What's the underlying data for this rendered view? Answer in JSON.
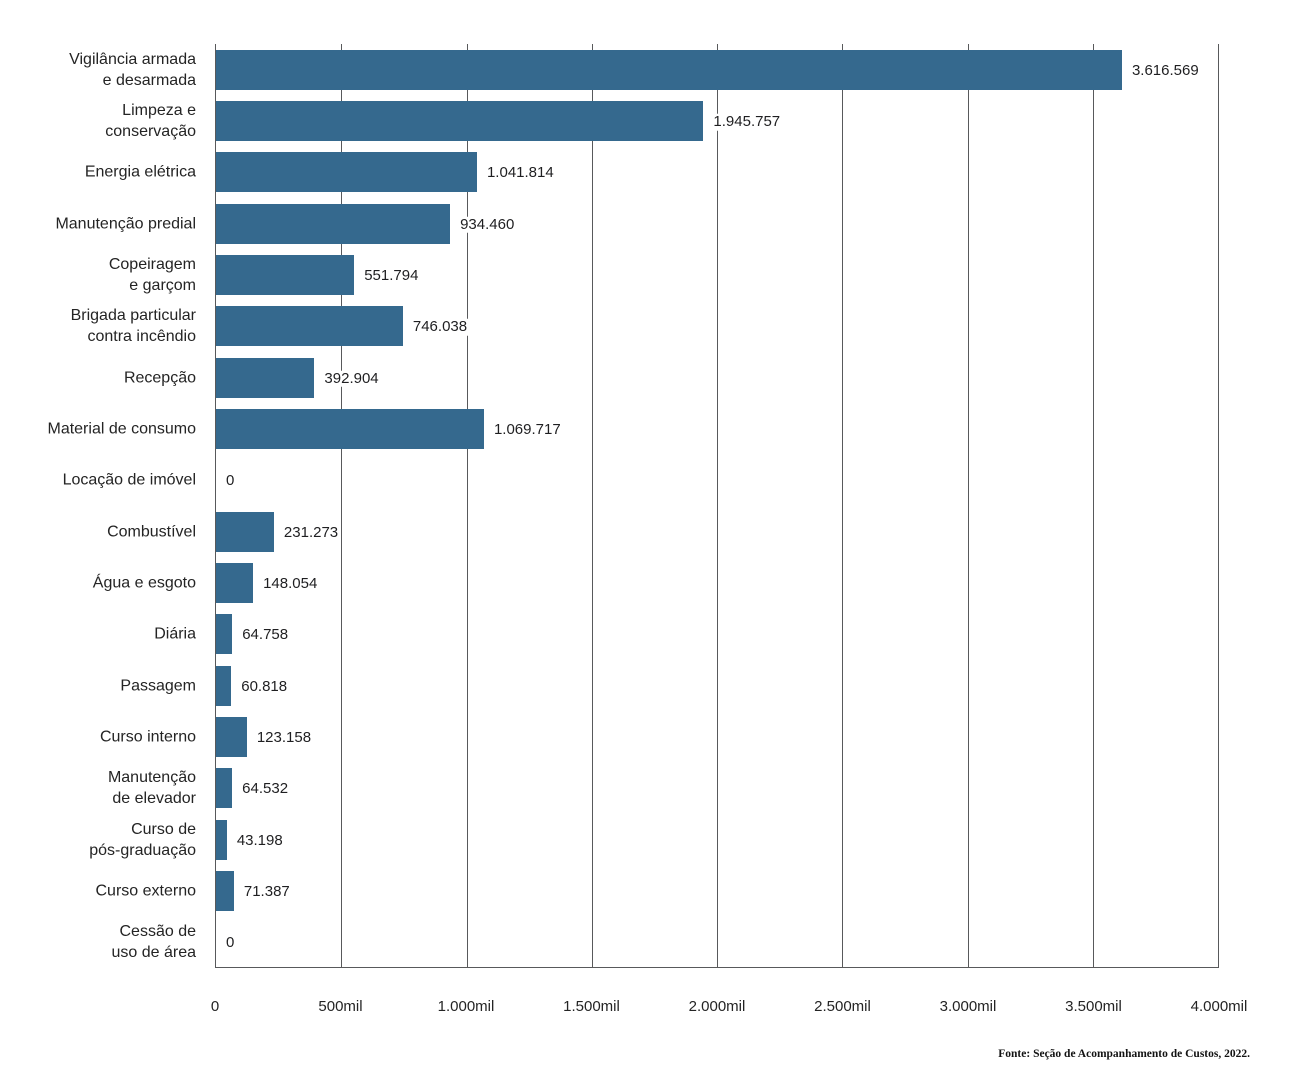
{
  "chart_data": {
    "type": "bar",
    "orientation": "horizontal",
    "title": "",
    "xlabel": "",
    "ylabel": "",
    "xlim": [
      0,
      4000000
    ],
    "grid": true,
    "legend": "none",
    "bar_color": "#35698e",
    "grid_color": "#58595b",
    "text_color": "#242424",
    "categories": [
      "Vigilância armada\ne desarmada",
      "Limpeza e\nconservação",
      "Energia elétrica",
      "Manutenção predial",
      "Copeiragem\ne garçom",
      "Brigada particular\ncontra incêndio",
      "Recepção",
      "Material de consumo",
      "Locação de imóvel",
      "Combustível",
      "Água e esgoto",
      "Diária",
      "Passagem",
      "Curso interno",
      "Manutenção\nde elevador",
      "Curso de\npós-graduação",
      "Curso externo",
      "Cessão de\nuso de área"
    ],
    "values": [
      3616569,
      1945757,
      1041814,
      934460,
      551794,
      746038,
      392904,
      1069717,
      0,
      231273,
      148054,
      64758,
      60818,
      123158,
      64532,
      43198,
      71387,
      0
    ],
    "value_labels": [
      "3.616.569",
      "1.945.757",
      "1.041.814",
      "934.460",
      "551.794",
      "746.038",
      "392.904",
      "1.069.717",
      "0",
      "231.273",
      "148.054",
      "64.758",
      "60.818",
      "123.158",
      "64.532",
      "43.198",
      "71.387",
      "0"
    ],
    "x_ticks": [
      "0",
      "500mil",
      "1.000mil",
      "1.500mil",
      "2.000mil",
      "2.500mil",
      "3.000mil",
      "3.500mil",
      "4.000mil"
    ],
    "source": "Fonte: Seção de Acompanhamento de Custos, 2022."
  }
}
